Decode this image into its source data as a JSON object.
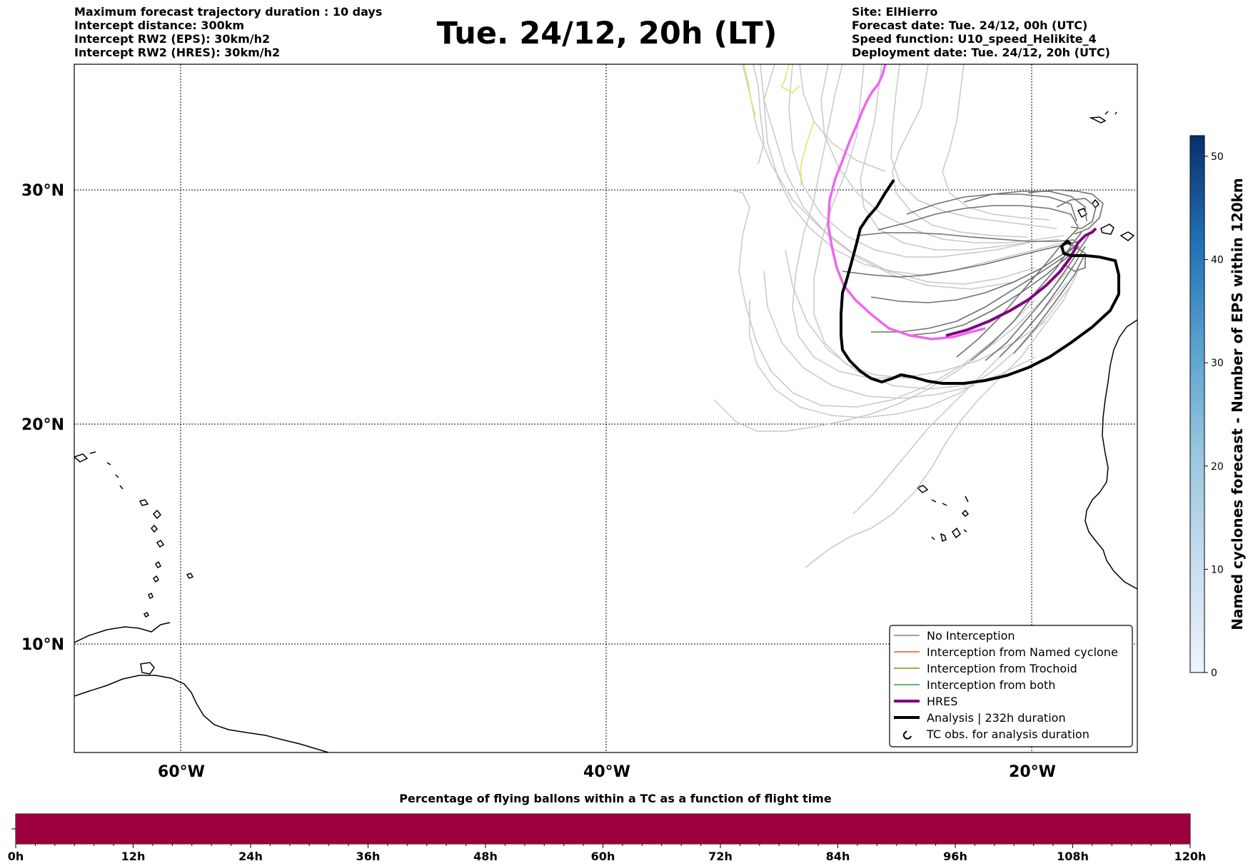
{
  "header": {
    "title": "Tue. 24/12, 20h (LT)",
    "left_lines": [
      "Maximum forecast trajectory duration : 10 days",
      "Intercept distance: 300km",
      "Intercept RW2 (EPS):  30km/h2",
      "Intercept RW2 (HRES): 30km/h2"
    ],
    "right_lines": [
      "Site: ElHierro",
      "Forecast date: Tue. 24/12, 00h (UTC)",
      "Speed function: U10_speed_Helikite_4",
      "Deployment date: Tue. 24/12, 20h (UTC)"
    ]
  },
  "map": {
    "lon_labels": [
      "60°W",
      "40°W",
      "20°W"
    ],
    "lat_labels": [
      "30°N",
      "20°N",
      "10°N"
    ],
    "legend": [
      {
        "label": "No Interception",
        "color": "#808080",
        "style": "thin"
      },
      {
        "label": "Interception from Named cyclone",
        "color": "#e8542a",
        "style": "thin"
      },
      {
        "label": "Interception from Trochoid",
        "color": "#8c8c1c",
        "style": "thin"
      },
      {
        "label": "Interception from both",
        "color": "#2ca02c",
        "style": "thin"
      },
      {
        "label": "HRES",
        "color": "#800080",
        "style": "thick"
      },
      {
        "label": "Analysis | 232h duration",
        "color": "#000000",
        "style": "thick"
      },
      {
        "label": "TC obs. for analysis duration",
        "color": "#000000",
        "style": "symbol"
      }
    ],
    "colors": {
      "no_interception": "#808080",
      "light_track": "#cccccc",
      "hres_magenta": "#ee66ee",
      "hres": "#800080",
      "analysis": "#000000",
      "yellow_track": "#e8e060"
    }
  },
  "colorbar": {
    "title": "Named cyclones forecast - Number of EPS within 120km",
    "ticks": [
      "0",
      "10",
      "20",
      "30",
      "40",
      "50"
    ],
    "range": [
      0,
      52
    ],
    "color_low": "#eef4fb",
    "color_high": "#08306b"
  },
  "progress": {
    "title": "Percentage of flying ballons within a TC as a function of flight time",
    "ticks": [
      "0h",
      "12h",
      "24h",
      "36h",
      "48h",
      "60h",
      "72h",
      "84h",
      "96h",
      "108h",
      "120h"
    ],
    "fill_fraction": 1.0,
    "color": "#9b003c"
  }
}
